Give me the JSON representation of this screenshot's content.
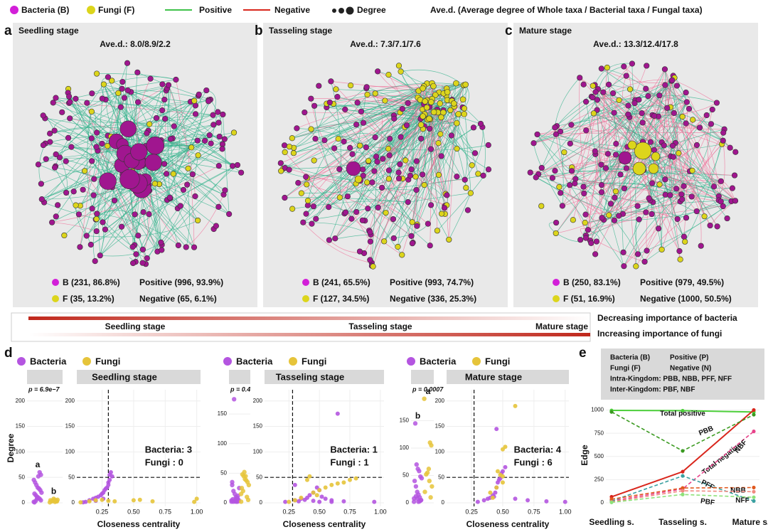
{
  "legend": {
    "bacteria": "Bacteria (B)",
    "fungi": "Fungi (F)",
    "positive": "Positive",
    "negative": "Negative",
    "degree": "Degree",
    "aved": "Ave.d.  (Average degree of Whole taxa / Bacterial taxa / Fungal taxa)"
  },
  "networks": [
    {
      "letter": "a",
      "title": "Seedling stage",
      "aved": "Ave.d.: 8.0/8.9/2.2",
      "b": "B (231, 86.8%)",
      "f": "F (35, 13.2%)",
      "pos": "Positive (996, 93.9%)",
      "neg": "Negative (65, 6.1%)"
    },
    {
      "letter": "b",
      "title": "Tasseling stage",
      "aved": "Ave.d.: 7.3/7.1/7.6",
      "b": "B (241, 65.5%)",
      "f": "F (127, 34.5%)",
      "pos": "Positive (993, 74.7%)",
      "neg": "Negative (336, 25.3%)"
    },
    {
      "letter": "c",
      "title": "Mature stage",
      "aved": "Ave.d.: 13.3/12.4/17.8",
      "b": "B (250, 83.1%)",
      "f": "F (51, 16.9%)",
      "pos": "Positive (979, 49.5%)",
      "neg": "Negative (1000, 50.5%)"
    }
  ],
  "gradient": {
    "top": "Decreasing importance of bacteria",
    "bottom": "Increasing importance of  fungi",
    "stages": [
      "Seedling stage",
      "Tasseling stage",
      "Mature stage"
    ]
  },
  "chart_data": [
    {
      "type": "degree_closeness",
      "letter": "d",
      "title": "Seedling stage",
      "ylabel": "Degree",
      "xlabel": "Closeness centrality",
      "rho": "p = 6.9e−7",
      "group_letters": [
        "a",
        "b"
      ],
      "counts": [
        "Bacteria: 3",
        "Fungi : 0"
      ],
      "series": [
        {
          "name": "Bacteria",
          "color": "#b455e0",
          "x": [
            0.12,
            0.15,
            0.18,
            0.2,
            0.22,
            0.24,
            0.25,
            0.26,
            0.27,
            0.28,
            0.29,
            0.3,
            0.3,
            0.31,
            0.31,
            0.32,
            0.33,
            0.26,
            0.2,
            0.1
          ],
          "y": [
            2,
            5,
            8,
            10,
            12,
            15,
            18,
            20,
            25,
            28,
            30,
            35,
            40,
            45,
            55,
            60,
            52,
            8,
            4,
            1
          ]
        },
        {
          "name": "Fungi",
          "color": "#e6c43a",
          "x": [
            0.08,
            0.15,
            0.2,
            0.25,
            0.3,
            0.35,
            0.5,
            0.55,
            0.65,
            0.98,
            1.0
          ],
          "y": [
            1,
            3,
            5,
            6,
            4,
            3,
            5,
            6,
            3,
            2,
            8
          ]
        }
      ],
      "strip_ylim": [
        0,
        215
      ],
      "strip_yticks": [
        0,
        50,
        100,
        150,
        200
      ],
      "ylim": [
        0,
        215
      ],
      "yticks": [
        0,
        50,
        100,
        150,
        200
      ],
      "xlim": [
        0.05,
        1.03
      ],
      "xticks": [
        {
          "value": 0.25,
          "label": "0.25"
        },
        {
          "value": 0.5,
          "label": "0.50"
        },
        {
          "value": 0.75,
          "label": "0.75"
        },
        {
          "value": 1,
          "label": "1.00"
        }
      ],
      "threshold_x": 0.3,
      "threshold_y": 50
    },
    {
      "type": "degree_closeness",
      "title": "Tasseling stage",
      "xlabel": "Closeness centrality",
      "rho": "p = 0.4",
      "group_letters": [],
      "counts": [
        "Bacteria: 1",
        "Fungi : 1"
      ],
      "series": [
        {
          "name": "Bacteria",
          "color": "#b455e0",
          "x": [
            0.22,
            0.3,
            0.35,
            0.4,
            0.42,
            0.45,
            0.48,
            0.5,
            0.52,
            0.55,
            0.6,
            0.65,
            0.38,
            0.45,
            0.33,
            0.5,
            0.6,
            0.7,
            0.95,
            0.3
          ],
          "y": [
            2,
            5,
            8,
            10,
            15,
            20,
            30,
            25,
            12,
            8,
            5,
            175,
            6,
            4,
            3,
            2,
            2,
            3,
            2,
            35
          ]
        },
        {
          "name": "Fungi",
          "color": "#e6c43a",
          "x": [
            0.25,
            0.3,
            0.35,
            0.4,
            0.42,
            0.45,
            0.5,
            0.55,
            0.6,
            0.65,
            0.7,
            0.75,
            0.8,
            0.48
          ],
          "y": [
            2,
            5,
            10,
            45,
            52,
            20,
            25,
            30,
            35,
            38,
            40,
            45,
            48,
            15
          ]
        }
      ],
      "strip_ylim": [
        0,
        185
      ],
      "strip_yticks": [
        0,
        50,
        100,
        150
      ],
      "ylim": [
        0,
        215
      ],
      "yticks": [
        0,
        50,
        100,
        150,
        200
      ],
      "xlim": [
        0.05,
        1.03
      ],
      "xticks": [
        {
          "value": 0.25,
          "label": "0.25"
        },
        {
          "value": 0.5,
          "label": "0.50"
        },
        {
          "value": 0.75,
          "label": "0.75"
        },
        {
          "value": 1,
          "label": "1.00"
        }
      ],
      "threshold_x": 0.28,
      "threshold_y": 50
    },
    {
      "type": "degree_closeness",
      "title": "Mature stage",
      "xlabel": "Closeness centrality",
      "rho": "p = 0.0007",
      "group_letters": [
        "b",
        "a"
      ],
      "counts": [
        "Bacteria: 4",
        "Fungi : 6"
      ],
      "series": [
        {
          "name": "Bacteria",
          "color": "#b455e0",
          "x": [
            0.3,
            0.35,
            0.4,
            0.42,
            0.44,
            0.45,
            0.46,
            0.47,
            0.48,
            0.49,
            0.5,
            0.52,
            0.45,
            0.6,
            0.7,
            0.85,
            1.0,
            0.38,
            0.43
          ],
          "y": [
            2,
            5,
            10,
            15,
            20,
            30,
            40,
            45,
            48,
            58,
            62,
            70,
            145,
            8,
            5,
            3,
            2,
            8,
            12
          ]
        },
        {
          "name": "Fungi",
          "color": "#e6c43a",
          "x": [
            0.6,
            0.5,
            0.52,
            0.46,
            0.48,
            0.5,
            0.4,
            0.45,
            0.42,
            0.5
          ],
          "y": [
            190,
            105,
            110,
            62,
            55,
            52,
            20,
            30,
            10,
            40
          ]
        }
      ],
      "strip_ylim": [
        0,
        200
      ],
      "strip_yticks": [
        0,
        50,
        100,
        150
      ],
      "ylim": [
        0,
        215
      ],
      "yticks": [
        0,
        50,
        100,
        150,
        200
      ],
      "xlim": [
        0.05,
        1.03
      ],
      "xticks": [
        {
          "value": 0.25,
          "label": "0.25"
        },
        {
          "value": 0.5,
          "label": "0.50"
        },
        {
          "value": 0.75,
          "label": "0.75"
        },
        {
          "value": 1,
          "label": "1.00"
        }
      ],
      "threshold_x": 0.27,
      "threshold_y": 50
    },
    {
      "type": "line",
      "letter": "e",
      "ylabel": "Edge",
      "legend_box": [
        "Bacteria (B)",
        "Positive (P)",
        "Fungi (F)",
        "Negative (N)",
        "Intra-Kingdom:  PBB, NBB, PFF, NFF",
        "Inter-Kingdom:  PBF, NBF"
      ],
      "categories": [
        "Seedling s.",
        "Tasseling s.",
        "Mature s."
      ],
      "ylim": [
        0,
        1050
      ],
      "yticks": [
        0,
        250,
        500,
        750,
        1000
      ],
      "series": [
        {
          "name": "Total positive",
          "color": "#4ccf3a",
          "dash": false,
          "values": [
            996,
            993,
            979
          ]
        },
        {
          "name": "Total negative",
          "color": "#d9261c",
          "dash": false,
          "values": [
            65,
            336,
            1000
          ]
        },
        {
          "name": "PBB",
          "color": "#3a9a20",
          "dash": true,
          "values": [
            980,
            560,
            950
          ]
        },
        {
          "name": "NBF",
          "color": "#e8428a",
          "dash": true,
          "values": [
            20,
            150,
            770
          ]
        },
        {
          "name": "PFF",
          "color": "#3aa0a0",
          "dash": true,
          "values": [
            20,
            290,
            20
          ]
        },
        {
          "name": "NBB",
          "color": "#e0581e",
          "dash": true,
          "values": [
            40,
            160,
            165
          ]
        },
        {
          "name": "NFF",
          "color": "#f08a80",
          "dash": true,
          "values": [
            10,
            130,
            120
          ]
        },
        {
          "name": "PBF",
          "color": "#8ee27a",
          "dash": true,
          "values": [
            5,
            90,
            60
          ]
        }
      ]
    }
  ]
}
